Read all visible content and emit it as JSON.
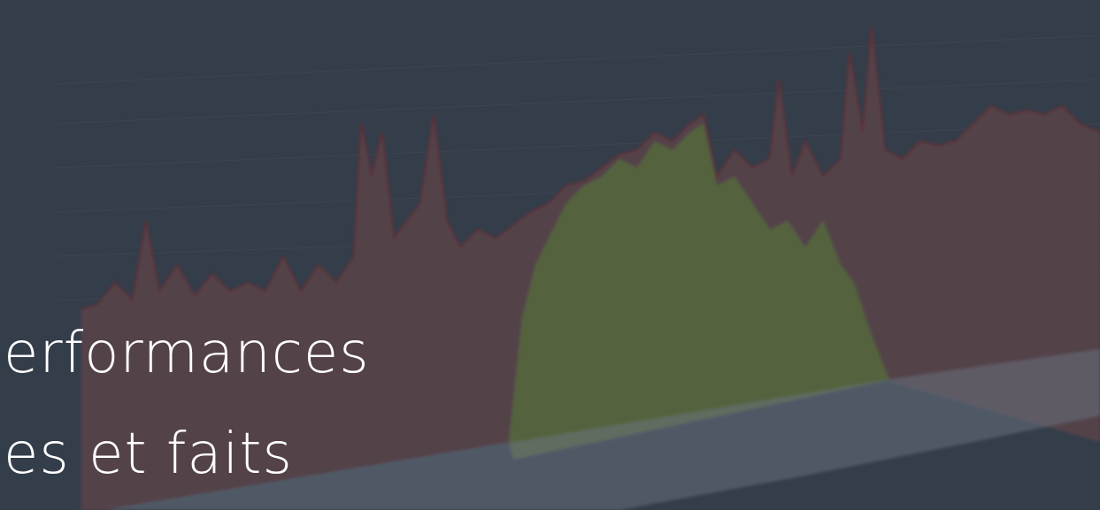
{
  "headline": {
    "lines": [
      "erformances",
      "es et faits"
    ]
  }
}
